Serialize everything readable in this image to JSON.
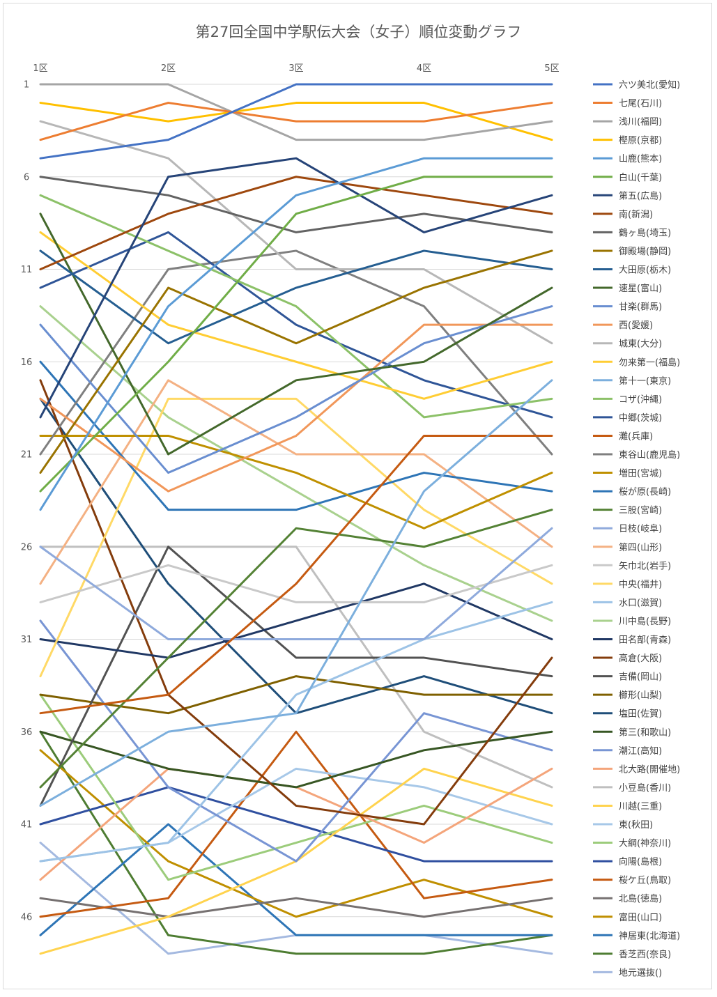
{
  "chart_data": {
    "type": "line",
    "title": "第27回全国中学駅伝大会（女子）順位変動グラフ",
    "categories": [
      "1区",
      "2区",
      "3区",
      "4区",
      "5区"
    ],
    "y_ticks": [
      1,
      6,
      11,
      16,
      21,
      26,
      31,
      36,
      41,
      46
    ],
    "ylim": [
      1,
      48
    ],
    "y_reversed": true,
    "grid": true,
    "legend_position": "right",
    "series": [
      {
        "name": "六ツ美北(愛知)",
        "color": "#4472c4",
        "values": [
          5,
          4,
          1,
          1,
          1
        ]
      },
      {
        "name": "七尾(石川)",
        "color": "#ed7d31",
        "values": [
          4,
          2,
          3,
          3,
          2
        ]
      },
      {
        "name": "浅川(福岡)",
        "color": "#a5a5a5",
        "values": [
          1,
          1,
          4,
          4,
          3
        ]
      },
      {
        "name": "樫原(京都)",
        "color": "#ffc000",
        "values": [
          2,
          3,
          2,
          2,
          4
        ]
      },
      {
        "name": "山鹿(熊本)",
        "color": "#5b9bd5",
        "values": [
          24,
          13,
          7,
          5,
          5
        ]
      },
      {
        "name": "白山(千葉)",
        "color": "#70ad47",
        "values": [
          23,
          16,
          8,
          6,
          6
        ]
      },
      {
        "name": "第五(広島)",
        "color": "#264478",
        "values": [
          19,
          6,
          5,
          9,
          7
        ]
      },
      {
        "name": "南(新潟)",
        "color": "#9e480e",
        "values": [
          11,
          8,
          6,
          7,
          8
        ]
      },
      {
        "name": "鶴ヶ島(埼玉)",
        "color": "#636363",
        "values": [
          6,
          7,
          9,
          8,
          9
        ]
      },
      {
        "name": "御殿場(静岡)",
        "color": "#997300",
        "values": [
          22,
          12,
          15,
          12,
          10
        ]
      },
      {
        "name": "大田原(栃木)",
        "color": "#255e91",
        "values": [
          10,
          15,
          12,
          10,
          11
        ]
      },
      {
        "name": "速星(富山)",
        "color": "#43682b",
        "values": [
          8,
          21,
          17,
          16,
          12
        ]
      },
      {
        "name": "甘楽(群馬)",
        "color": "#698ed0",
        "values": [
          14,
          22,
          19,
          15,
          13
        ]
      },
      {
        "name": "西(愛媛)",
        "color": "#f1975a",
        "values": [
          18,
          23,
          20,
          14,
          14
        ]
      },
      {
        "name": "城東(大分)",
        "color": "#b7b7b7",
        "values": [
          3,
          5,
          11,
          11,
          15
        ]
      },
      {
        "name": "勿来第一(福島)",
        "color": "#ffcd33",
        "values": [
          9,
          14,
          16,
          18,
          16
        ]
      },
      {
        "name": "第十一(東京)",
        "color": "#7cafdd",
        "values": [
          40,
          36,
          35,
          23,
          17
        ]
      },
      {
        "name": "コザ(沖縄)",
        "color": "#8cc168",
        "values": [
          7,
          10,
          13,
          19,
          18
        ]
      },
      {
        "name": "中郷(茨城)",
        "color": "#2f5597",
        "values": [
          12,
          9,
          14,
          17,
          19
        ]
      },
      {
        "name": "灘(兵庫)",
        "color": "#c55a11",
        "values": [
          35,
          34,
          28,
          20,
          20
        ]
      },
      {
        "name": "東谷山(鹿児島)",
        "color": "#7f7f7f",
        "values": [
          21,
          11,
          10,
          13,
          21
        ]
      },
      {
        "name": "増田(宮城)",
        "color": "#bf9000",
        "values": [
          20,
          20,
          22,
          25,
          22
        ]
      },
      {
        "name": "桜が原(長崎)",
        "color": "#2e75b6",
        "values": [
          16,
          24,
          24,
          22,
          23
        ]
      },
      {
        "name": "三股(宮崎)",
        "color": "#548235",
        "values": [
          39,
          32,
          25,
          26,
          24
        ]
      },
      {
        "name": "日枝(岐阜)",
        "color": "#8faadc",
        "values": [
          26,
          31,
          31,
          31,
          25
        ]
      },
      {
        "name": "第四(山形)",
        "color": "#f4b183",
        "values": [
          28,
          17,
          21,
          21,
          26
        ]
      },
      {
        "name": "矢巾北(岩手)",
        "color": "#c9c9c9",
        "values": [
          29,
          27,
          29,
          29,
          27
        ]
      },
      {
        "name": "中央(福井)",
        "color": "#ffd966",
        "values": [
          33,
          18,
          18,
          24,
          28
        ]
      },
      {
        "name": "水口(滋賀)",
        "color": "#9dc3e6",
        "values": [
          43,
          42,
          34,
          31,
          29
        ]
      },
      {
        "name": "川中島(長野)",
        "color": "#a9d18e",
        "values": [
          13,
          19,
          23,
          27,
          30
        ]
      },
      {
        "name": "田名部(青森)",
        "color": "#203864",
        "values": [
          31,
          32,
          30,
          28,
          31
        ]
      },
      {
        "name": "高倉(大阪)",
        "color": "#843c0c",
        "values": [
          17,
          34,
          40,
          41,
          32
        ]
      },
      {
        "name": "吉備(岡山)",
        "color": "#525252",
        "values": [
          40,
          26,
          32,
          32,
          33
        ]
      },
      {
        "name": "櫛形(山梨)",
        "color": "#7f6000",
        "values": [
          34,
          35,
          33,
          34,
          34
        ]
      },
      {
        "name": "塩田(佐賀)",
        "color": "#1f4e79",
        "values": [
          18,
          28,
          35,
          33,
          35
        ]
      },
      {
        "name": "第三(和歌山)",
        "color": "#375623",
        "values": [
          36,
          38,
          39,
          37,
          36
        ]
      },
      {
        "name": "潮江(高知)",
        "color": "#7895d4",
        "values": [
          30,
          39,
          43,
          35,
          37
        ]
      },
      {
        "name": "北大路(開催地)",
        "color": "#f4a57b",
        "values": [
          44,
          38,
          39,
          42,
          38
        ]
      },
      {
        "name": "小豆島(香川)",
        "color": "#bfbfbf",
        "values": [
          26,
          26,
          26,
          36,
          39
        ]
      },
      {
        "name": "川越(三重)",
        "color": "#ffd34e",
        "values": [
          48,
          46,
          43,
          38,
          40
        ]
      },
      {
        "name": "東(秋田)",
        "color": "#a7c8e8",
        "values": [
          43,
          42,
          38,
          39,
          41
        ]
      },
      {
        "name": "大綱(神奈川)",
        "color": "#9ccc7b",
        "values": [
          34,
          44,
          42,
          40,
          42
        ]
      },
      {
        "name": "向陽(島根)",
        "color": "#2f4f9f",
        "values": [
          41,
          39,
          41,
          43,
          43
        ]
      },
      {
        "name": "桜ケ丘(鳥取)",
        "color": "#c55a11",
        "values": [
          46,
          45,
          36,
          45,
          44
        ]
      },
      {
        "name": "北島(徳島)",
        "color": "#767171",
        "values": [
          45,
          46,
          45,
          46,
          45
        ]
      },
      {
        "name": "富田(山口)",
        "color": "#bf8f00",
        "values": [
          37,
          43,
          46,
          44,
          46
        ]
      },
      {
        "name": "神居東(北海道)",
        "color": "#2e75b6",
        "values": [
          47,
          41,
          47,
          47,
          47
        ]
      },
      {
        "name": "香芝西(奈良)",
        "color": "#4e7d32",
        "values": [
          36,
          47,
          48,
          48,
          47
        ]
      },
      {
        "name": "地元選抜()",
        "color": "#a4b9e0",
        "values": [
          42,
          48,
          47,
          47,
          48
        ]
      }
    ]
  }
}
